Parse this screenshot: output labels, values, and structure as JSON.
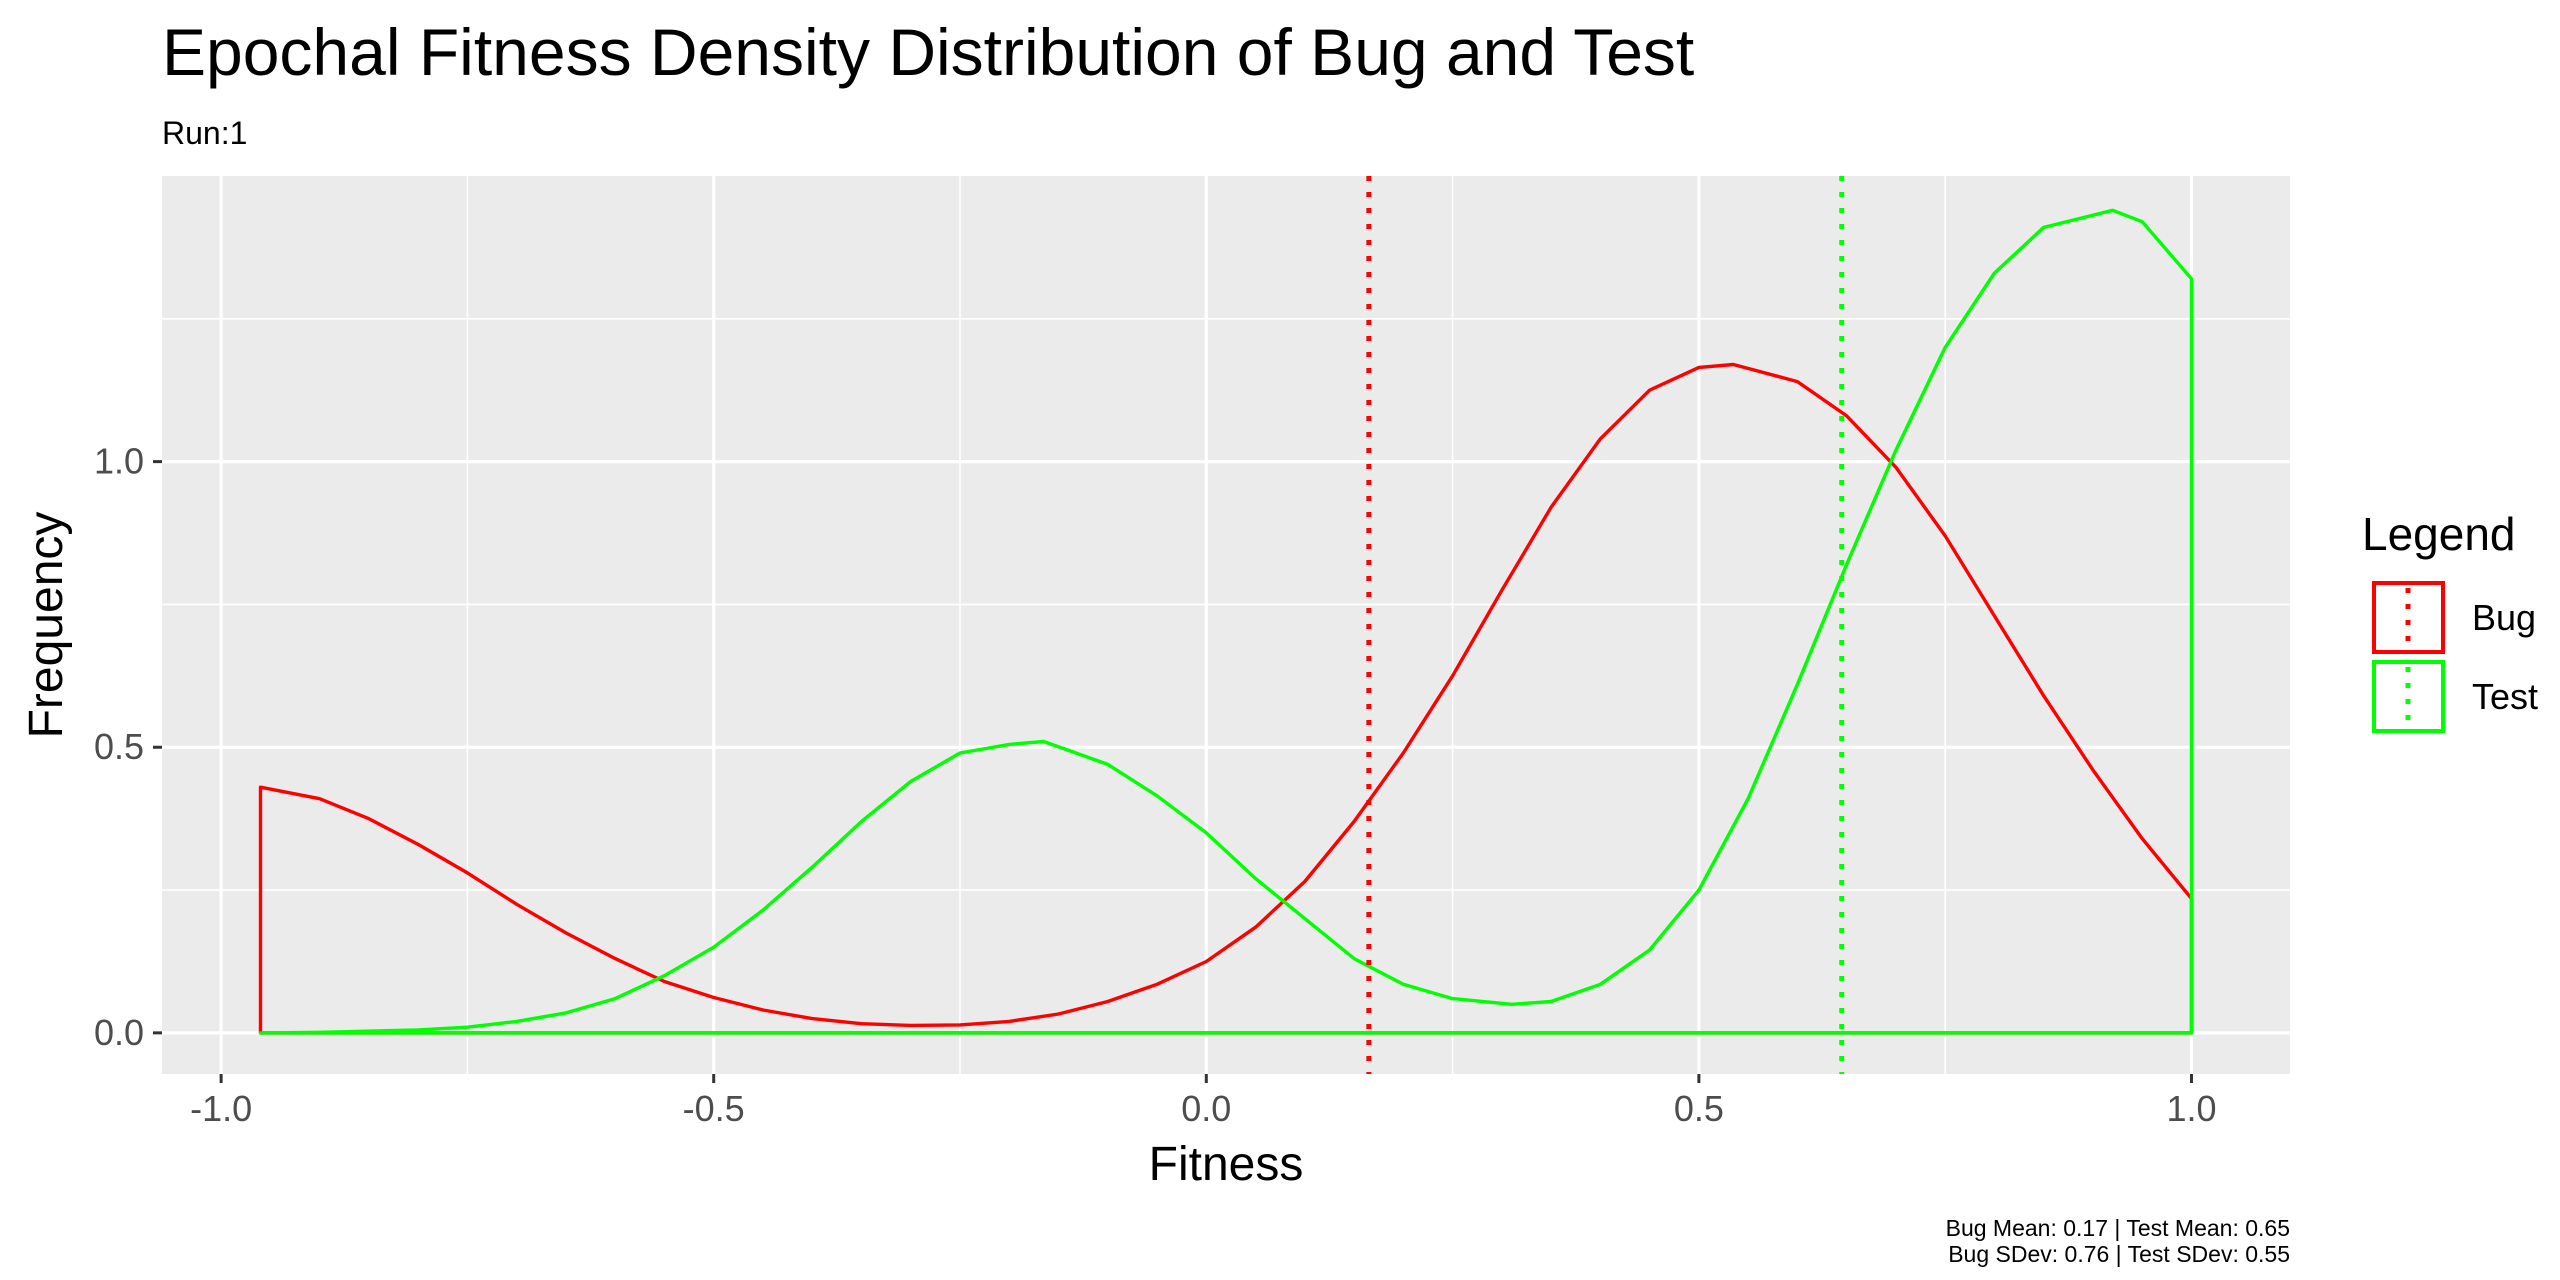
{
  "chart_data": {
    "type": "line",
    "title": "Epochal Fitness Density Distribution of Bug and Test",
    "subtitle": "Run:1",
    "xlabel": "Fitness",
    "ylabel": "Frequency",
    "xlim": [
      -1.06,
      1.1
    ],
    "ylim": [
      -0.072,
      1.5
    ],
    "x_ticks": [
      "-1.0",
      "-0.5",
      "0.0",
      "0.5",
      "1.0"
    ],
    "y_ticks": [
      "0.0",
      "0.5",
      "1.0"
    ],
    "grid": true,
    "legend": {
      "title": "Legend",
      "position": "right",
      "entries": [
        {
          "name": "Bug",
          "color": "#ff0000"
        },
        {
          "name": "Test",
          "color": "#00ff00"
        }
      ]
    },
    "series": [
      {
        "name": "Bug",
        "color": "#ff0000",
        "x": [
          -0.96,
          -0.9,
          -0.85,
          -0.8,
          -0.75,
          -0.7,
          -0.65,
          -0.6,
          -0.55,
          -0.5,
          -0.45,
          -0.4,
          -0.35,
          -0.3,
          -0.25,
          -0.2,
          -0.15,
          -0.1,
          -0.05,
          0.0,
          0.05,
          0.1,
          0.15,
          0.2,
          0.25,
          0.3,
          0.35,
          0.4,
          0.45,
          0.5,
          0.535,
          0.6,
          0.65,
          0.7,
          0.75,
          0.8,
          0.85,
          0.9,
          0.95,
          1.0
        ],
        "y": [
          0.43,
          0.41,
          0.375,
          0.33,
          0.28,
          0.225,
          0.175,
          0.13,
          0.09,
          0.062,
          0.04,
          0.025,
          0.016,
          0.013,
          0.014,
          0.02,
          0.033,
          0.055,
          0.085,
          0.125,
          0.185,
          0.265,
          0.37,
          0.49,
          0.625,
          0.775,
          0.92,
          1.04,
          1.125,
          1.165,
          1.17,
          1.14,
          1.08,
          0.99,
          0.87,
          0.73,
          0.59,
          0.46,
          0.34,
          0.235
        ]
      },
      {
        "name": "Test",
        "color": "#00ff00",
        "x": [
          -0.96,
          -0.9,
          -0.8,
          -0.75,
          -0.7,
          -0.65,
          -0.6,
          -0.55,
          -0.5,
          -0.45,
          -0.4,
          -0.35,
          -0.3,
          -0.25,
          -0.2,
          -0.165,
          -0.1,
          -0.05,
          0.0,
          0.05,
          0.1,
          0.15,
          0.2,
          0.25,
          0.31,
          0.35,
          0.4,
          0.45,
          0.5,
          0.55,
          0.6,
          0.65,
          0.7,
          0.75,
          0.8,
          0.85,
          0.92,
          0.95,
          1.0
        ],
        "y": [
          0.0,
          0.001,
          0.005,
          0.01,
          0.02,
          0.035,
          0.06,
          0.1,
          0.15,
          0.215,
          0.29,
          0.37,
          0.44,
          0.49,
          0.505,
          0.51,
          0.47,
          0.415,
          0.35,
          0.27,
          0.2,
          0.13,
          0.085,
          0.06,
          0.05,
          0.055,
          0.085,
          0.145,
          0.25,
          0.41,
          0.61,
          0.82,
          1.02,
          1.2,
          1.33,
          1.41,
          1.44,
          1.42,
          1.32
        ]
      }
    ],
    "vlines": [
      {
        "name": "Bug Mean",
        "x": 0.165,
        "color": "#ff0000"
      },
      {
        "name": "Test Mean",
        "x": 0.645,
        "color": "#00ff00"
      }
    ],
    "caption": [
      "Bug Mean: 0.17 | Test Mean: 0.65",
      "Bug SDev: 0.76 | Test SDev: 0.55"
    ]
  }
}
